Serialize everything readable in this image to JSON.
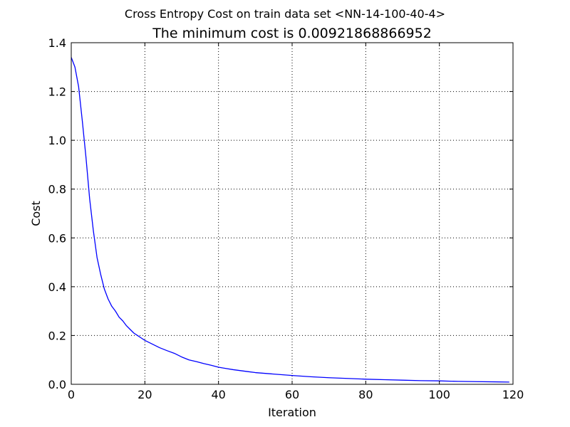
{
  "chart_data": {
    "type": "line",
    "suptitle": "Cross Entropy Cost on train data set <NN-14-100-40-4>",
    "title": "The minimum cost is 0.00921868866952",
    "xlabel": "Iteration",
    "ylabel": "Cost",
    "xlim": [
      0,
      120
    ],
    "ylim": [
      0,
      1.4
    ],
    "x_ticks": [
      0,
      20,
      40,
      60,
      80,
      100,
      120
    ],
    "x_tick_labels": [
      "0",
      "20",
      "40",
      "60",
      "80",
      "100",
      "120"
    ],
    "y_ticks": [
      0,
      0.2,
      0.4,
      0.6,
      0.8,
      1.0,
      1.2,
      1.4
    ],
    "y_tick_labels": [
      "0.0",
      "0.2",
      "0.4",
      "0.6",
      "0.8",
      "1.0",
      "1.2",
      "1.4"
    ],
    "grid": true,
    "line_color": "#0000ff",
    "series": [
      {
        "x": [
          0,
          1,
          2,
          3,
          4,
          5,
          6,
          7,
          8,
          9,
          10,
          11,
          12,
          13,
          14,
          15,
          16,
          17,
          18,
          19,
          20,
          22,
          24,
          26,
          28,
          30,
          32,
          34,
          36,
          38,
          40,
          42,
          44,
          46,
          48,
          50,
          55,
          60,
          65,
          70,
          75,
          80,
          85,
          90,
          95,
          100,
          105,
          110,
          115,
          119
        ],
        "values": [
          1.34,
          1.3,
          1.22,
          1.08,
          0.93,
          0.76,
          0.63,
          0.52,
          0.45,
          0.39,
          0.35,
          0.32,
          0.3,
          0.275,
          0.26,
          0.24,
          0.225,
          0.21,
          0.2,
          0.19,
          0.18,
          0.165,
          0.15,
          0.138,
          0.127,
          0.112,
          0.1,
          0.093,
          0.085,
          0.078,
          0.07,
          0.065,
          0.06,
          0.056,
          0.052,
          0.048,
          0.042,
          0.036,
          0.031,
          0.027,
          0.024,
          0.021,
          0.019,
          0.017,
          0.015,
          0.014,
          0.012,
          0.011,
          0.01,
          0.0092
        ]
      }
    ]
  }
}
